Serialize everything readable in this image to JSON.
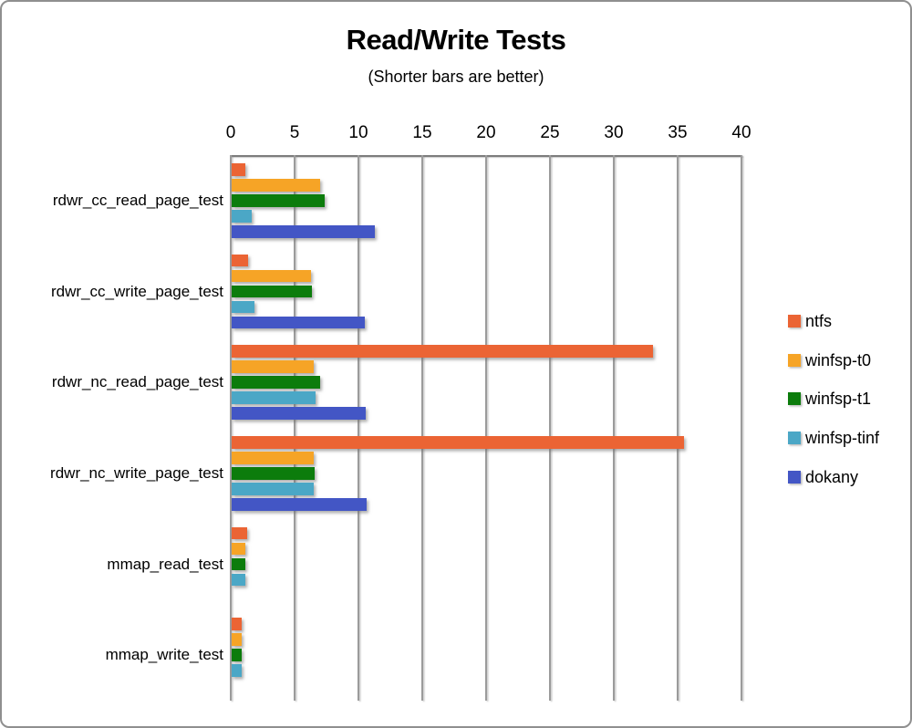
{
  "chart_data": {
    "type": "bar",
    "orientation": "horizontal",
    "title": "Read/Write Tests",
    "subtitle": "(Shorter bars are better)",
    "categories": [
      "rdwr_cc_read_page_test",
      "rdwr_cc_write_page_test",
      "rdwr_nc_read_page_test",
      "rdwr_nc_write_page_test",
      "mmap_read_test",
      "mmap_write_test"
    ],
    "series": [
      {
        "name": "ntfs",
        "color": "#EB6434",
        "values": [
          1.1,
          1.3,
          33.0,
          35.4,
          1.2,
          0.8
        ]
      },
      {
        "name": "winfsp-t0",
        "color": "#F6A426",
        "values": [
          6.9,
          6.2,
          6.4,
          6.4,
          1.1,
          0.8
        ]
      },
      {
        "name": "winfsp-t1",
        "color": "#0C7C0C",
        "values": [
          7.3,
          6.3,
          6.9,
          6.5,
          1.1,
          0.8
        ]
      },
      {
        "name": "winfsp-tinf",
        "color": "#4BA7C6",
        "values": [
          1.6,
          1.8,
          6.6,
          6.4,
          1.1,
          0.8
        ]
      },
      {
        "name": "dokany",
        "color": "#4356C5",
        "values": [
          11.2,
          10.4,
          10.5,
          10.6,
          null,
          null
        ]
      }
    ],
    "xlim": [
      0,
      40
    ],
    "xticks": [
      0,
      5,
      10,
      15,
      20,
      25,
      30,
      35,
      40
    ],
    "grid": true,
    "grid_color": "#9b9b9b",
    "legend_position": "right"
  }
}
